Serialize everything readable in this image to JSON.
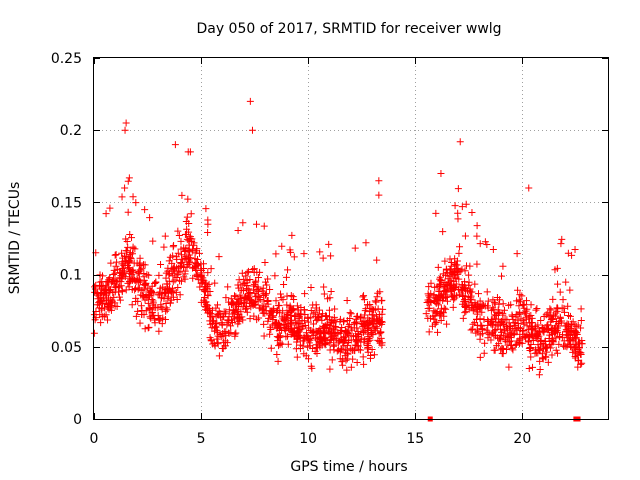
{
  "chart_data": {
    "type": "scatter",
    "title": "Day 050 of 2017, SRMTID for receiver wwlg",
    "xlabel": "GPS time / hours",
    "ylabel": "SRMTID / TECUs",
    "xlim": [
      0,
      24
    ],
    "ylim": [
      0,
      0.25
    ],
    "x_ticks": [
      0,
      5,
      10,
      15,
      20
    ],
    "x_tick_labels": [
      "0",
      "5",
      "10",
      "15",
      "20"
    ],
    "y_ticks": [
      0,
      0.05,
      0.1,
      0.15,
      0.2,
      0.25
    ],
    "y_tick_labels": [
      "0",
      "0.05",
      "0.1",
      "0.15",
      "0.2",
      "0.25"
    ],
    "grid": true,
    "marker": "+",
    "series_color": "#ff0000",
    "series": [
      {
        "name": "SRMTID",
        "segments": [
          {
            "x_start": 0.0,
            "x_end": 13.5,
            "density": 95,
            "profile": [
              [
                0,
                0.08
              ],
              [
                1,
                0.09
              ],
              [
                1.5,
                0.11
              ],
              [
                2,
                0.095
              ],
              [
                2.5,
                0.08
              ],
              [
                3,
                0.075
              ],
              [
                3.5,
                0.09
              ],
              [
                4,
                0.11
              ],
              [
                4.5,
                0.12
              ],
              [
                5,
                0.1
              ],
              [
                5.5,
                0.065
              ],
              [
                6,
                0.06
              ],
              [
                6.5,
                0.07
              ],
              [
                7,
                0.085
              ],
              [
                7.5,
                0.09
              ],
              [
                8,
                0.08
              ],
              [
                8.5,
                0.06
              ],
              [
                9,
                0.07
              ],
              [
                9.5,
                0.065
              ],
              [
                10,
                0.06
              ],
              [
                11,
                0.06
              ],
              [
                12,
                0.055
              ],
              [
                13,
                0.065
              ],
              [
                13.5,
                0.07
              ]
            ],
            "spread": 0.035
          },
          {
            "x_start": 15.5,
            "x_end": 22.8,
            "density": 95,
            "profile": [
              [
                15.5,
                0.08
              ],
              [
                16,
                0.08
              ],
              [
                16.5,
                0.09
              ],
              [
                17,
                0.1
              ],
              [
                17.5,
                0.085
              ],
              [
                18,
                0.07
              ],
              [
                19,
                0.065
              ],
              [
                19.5,
                0.06
              ],
              [
                20,
                0.07
              ],
              [
                20.5,
                0.06
              ],
              [
                21,
                0.05
              ],
              [
                21.5,
                0.06
              ],
              [
                22,
                0.065
              ],
              [
                22.5,
                0.055
              ],
              [
                22.8,
                0.045
              ]
            ],
            "spread": 0.035
          }
        ],
        "outliers": [
          {
            "x": 7.3,
            "y": 0.22
          },
          {
            "x": 7.4,
            "y": 0.2
          },
          {
            "x": 1.5,
            "y": 0.205
          },
          {
            "x": 1.45,
            "y": 0.2
          },
          {
            "x": 3.8,
            "y": 0.19
          },
          {
            "x": 4.4,
            "y": 0.185
          },
          {
            "x": 4.5,
            "y": 0.185
          },
          {
            "x": 17.1,
            "y": 0.192
          },
          {
            "x": 16.2,
            "y": 0.17
          },
          {
            "x": 13.3,
            "y": 0.165
          },
          {
            "x": 13.3,
            "y": 0.155
          },
          {
            "x": 20.3,
            "y": 0.16
          }
        ],
        "zero_points": [
          {
            "x": 15.7,
            "y": 0.0
          },
          {
            "x": 22.5,
            "y": 0.0
          },
          {
            "x": 22.6,
            "y": 0.0
          }
        ]
      }
    ]
  }
}
